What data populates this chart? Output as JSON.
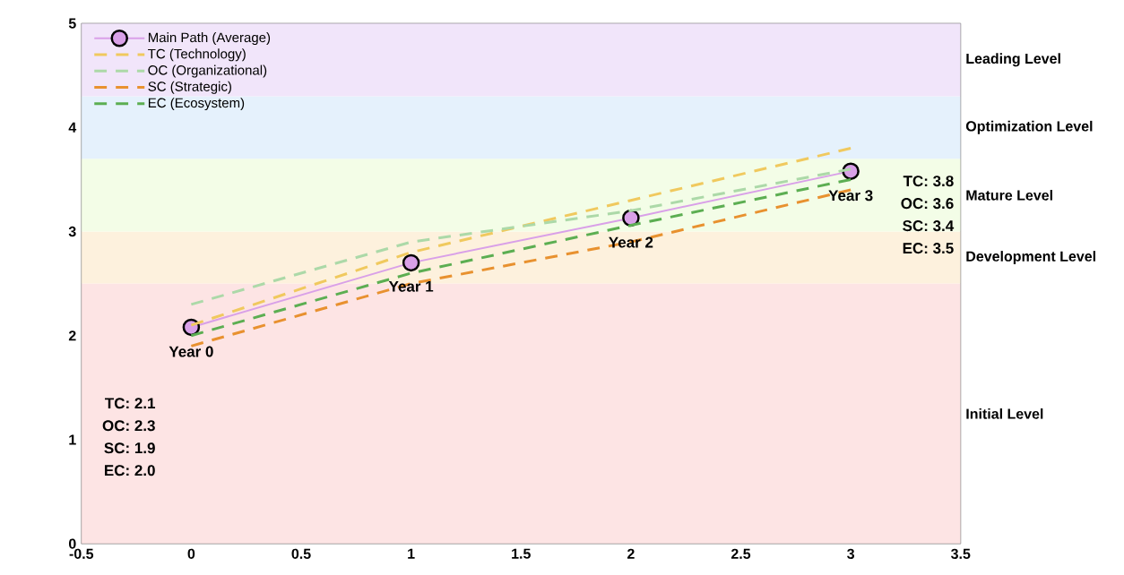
{
  "chart_data": {
    "type": "line",
    "xlim": [
      -0.5,
      3.5
    ],
    "ylim": [
      0,
      5
    ],
    "xticks": [
      -0.5,
      0,
      0.5,
      1,
      1.5,
      2,
      2.5,
      3,
      3.5
    ],
    "yticks": [
      0,
      1,
      2,
      3,
      4,
      5
    ],
    "x": [
      0,
      1,
      2,
      3
    ],
    "grid": false,
    "legend": "top left",
    "series": [
      {
        "name": "Main Path (Average)",
        "color": "#d9a0e8",
        "values": [
          2.08,
          2.7,
          3.13,
          3.58
        ],
        "marker": "circle",
        "line_style": "solid"
      },
      {
        "name": "TC (Technology)",
        "color": "#f0c95e",
        "values": [
          2.1,
          2.8,
          3.3,
          3.8
        ],
        "line_style": "dashed"
      },
      {
        "name": "OC (Organizational)",
        "color": "#acd9a8",
        "values": [
          2.3,
          2.9,
          3.2,
          3.6
        ],
        "line_style": "dashed"
      },
      {
        "name": "SC (Strategic)",
        "color": "#e8912f",
        "values": [
          1.9,
          2.5,
          2.9,
          3.4
        ],
        "line_style": "dashed"
      },
      {
        "name": "EC (Ecosystem)",
        "color": "#5cae52",
        "values": [
          2.0,
          2.6,
          3.06,
          3.5
        ],
        "line_style": "dashed"
      }
    ],
    "bands": [
      {
        "axis": "y",
        "from": 0,
        "to": 2.5,
        "label": "Initial Level",
        "color": "#fde4e4"
      },
      {
        "axis": "y",
        "from": 2.5,
        "to": 3.0,
        "label": "Development Level",
        "color": "#fdf1dd"
      },
      {
        "axis": "y",
        "from": 3.0,
        "to": 3.7,
        "label": "Mature Level",
        "color": "#f3fde7"
      },
      {
        "axis": "y",
        "from": 3.7,
        "to": 4.3,
        "label": "Optimization Level",
        "color": "#e5f1fc"
      },
      {
        "axis": "y",
        "from": 4.3,
        "to": 5,
        "label": "Leading Level",
        "color": "#f1e5fa"
      }
    ],
    "annotations": [
      {
        "text": "Year 0",
        "x": 0,
        "y": 2.075
      },
      {
        "text": "Year 1",
        "x": 1,
        "y": 2.7
      },
      {
        "text": "Year 2",
        "x": 2,
        "y": 3.125
      },
      {
        "text": "Year 3",
        "x": 3,
        "y": 3.575
      },
      "TC: 2.1",
      "OC: 2.3",
      "SC: 1.9",
      "EC: 2.0",
      "TC: 3.8",
      "OC: 3.6",
      "SC: 3.4",
      "EC: 3.5"
    ]
  }
}
